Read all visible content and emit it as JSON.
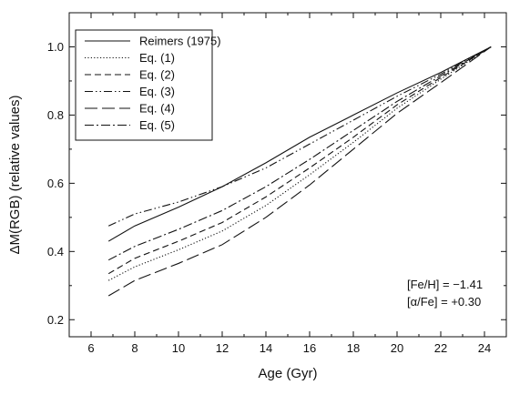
{
  "chart_data": {
    "type": "line",
    "xlabel": "Age (Gyr)",
    "ylabel": "ΔM(RGB) (relative values)",
    "xlim": [
      5,
      25
    ],
    "ylim": [
      0.15,
      1.1
    ],
    "x_ticks": [
      6,
      8,
      10,
      12,
      14,
      16,
      18,
      20,
      22,
      24
    ],
    "y_ticks": [
      0.2,
      0.4,
      0.6,
      0.8,
      1.0
    ],
    "x_tick_labels": [
      "6",
      "8",
      "10",
      "12",
      "14",
      "16",
      "18",
      "20",
      "22",
      "24"
    ],
    "y_tick_labels": [
      "0.2",
      "0.4",
      "0.6",
      "0.8",
      "1.0"
    ],
    "legend_position": "top-left",
    "annotations": [
      "[Fe/H] = −1.41",
      "[α/Fe] = +0.30"
    ],
    "series": [
      {
        "name": "Reimers (1975)",
        "dash": "solid",
        "x": [
          6.8,
          8,
          10,
          12,
          14,
          16,
          18,
          20,
          22,
          24.3
        ],
        "y": [
          0.43,
          0.475,
          0.53,
          0.59,
          0.66,
          0.735,
          0.8,
          0.865,
          0.925,
          1.0
        ]
      },
      {
        "name": "Eq. (1)",
        "dash": "dotted",
        "x": [
          6.8,
          8,
          10,
          12,
          14,
          16,
          18,
          20,
          22,
          24.3
        ],
        "y": [
          0.315,
          0.355,
          0.405,
          0.46,
          0.535,
          0.625,
          0.72,
          0.82,
          0.905,
          1.0
        ]
      },
      {
        "name": "Eq. (2)",
        "dash": "dashed",
        "x": [
          6.8,
          8,
          10,
          12,
          14,
          16,
          18,
          20,
          22,
          24.3
        ],
        "y": [
          0.335,
          0.38,
          0.43,
          0.485,
          0.56,
          0.645,
          0.735,
          0.83,
          0.91,
          1.0
        ]
      },
      {
        "name": "Eq. (3)",
        "dash": "dash-dot-dot",
        "x": [
          6.8,
          8,
          10,
          12,
          14,
          16,
          18,
          20,
          22,
          24.3
        ],
        "y": [
          0.475,
          0.51,
          0.545,
          0.59,
          0.645,
          0.715,
          0.785,
          0.855,
          0.92,
          1.0
        ]
      },
      {
        "name": "Eq. (4)",
        "dash": "long-dash",
        "x": [
          6.8,
          8,
          10,
          12,
          14,
          16,
          18,
          20,
          22,
          24.3
        ],
        "y": [
          0.27,
          0.315,
          0.365,
          0.42,
          0.5,
          0.595,
          0.7,
          0.805,
          0.895,
          1.0
        ]
      },
      {
        "name": "Eq. (5)",
        "dash": "dash-dot",
        "x": [
          6.8,
          8,
          10,
          12,
          14,
          16,
          18,
          20,
          22,
          24.3
        ],
        "y": [
          0.375,
          0.415,
          0.465,
          0.52,
          0.59,
          0.67,
          0.755,
          0.84,
          0.915,
          1.0
        ]
      }
    ]
  }
}
